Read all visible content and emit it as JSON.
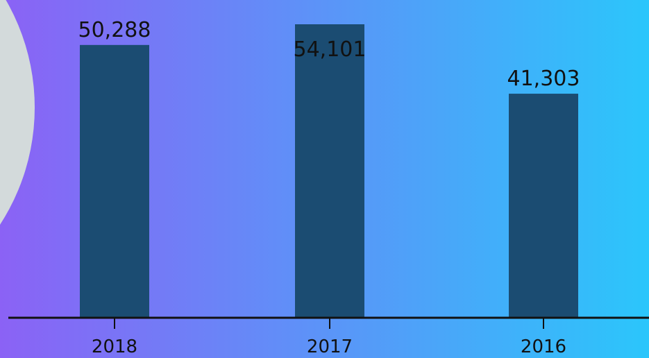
{
  "colors": {
    "background_left": "#8b62f5",
    "background_right": "#2bc6fb",
    "decor_circle": "#d3dadb",
    "bar": "#1b4c72",
    "axis": "#111111",
    "text": "#111111"
  },
  "chart_data": {
    "type": "bar",
    "categories": [
      "2018",
      "2017",
      "2016"
    ],
    "values": [
      50288,
      54101,
      41303
    ],
    "value_labels": [
      "50,288",
      "54,101",
      "41,303"
    ],
    "title": "",
    "xlabel": "",
    "ylabel": "",
    "ylim": [
      0,
      55000
    ],
    "grid": false,
    "legend": "none"
  }
}
